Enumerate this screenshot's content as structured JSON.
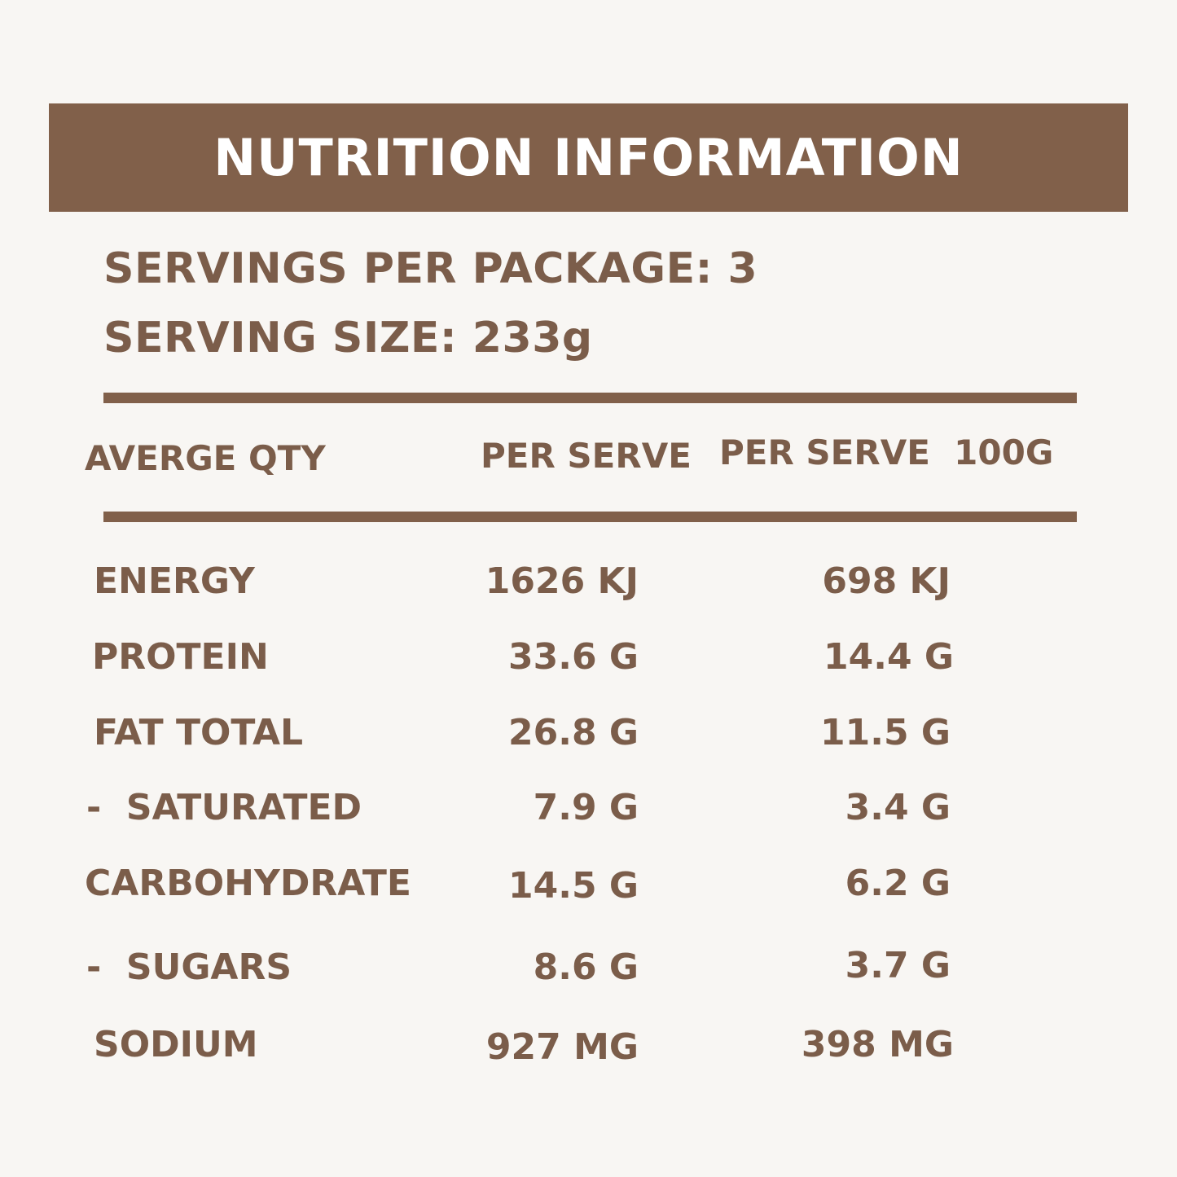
{
  "title": "NUTRITION INFORMATION",
  "servings_per_package": "SERVINGS PER PACKAGE: 3",
  "serving_size": "SERVING SIZE: 233g",
  "table": {
    "headers": [
      "AVERGE QTY",
      "PER SERVE",
      "PER SERVE  100G"
    ],
    "rows": [
      {
        "label": "ENERGY",
        "per_serve": "1626 KJ",
        "per_100g": "698 KJ"
      },
      {
        "label": "PROTEIN",
        "per_serve": "33.6 G",
        "per_100g": "14.4 G"
      },
      {
        "label": "FAT TOTAL",
        "per_serve": "26.8 G",
        "per_100g": "11.5 G"
      },
      {
        "label": "-  SATURATED",
        "per_serve": "7.9 G",
        "per_100g": "3.4 G"
      },
      {
        "label": "CARBOHYDRATE",
        "per_serve": "14.5 G",
        "per_100g": "6.2 G"
      },
      {
        "label": "-  SUGARS",
        "per_serve": "8.6 G",
        "per_100g": "3.7 G"
      },
      {
        "label": "SODIUM",
        "per_serve": "927 MG",
        "per_100g": "398 MG"
      }
    ]
  },
  "colors": {
    "brand_brown": "#81604a",
    "text_brown": "#7b5d4a",
    "background": "#f8f6f3",
    "title_text": "#ffffff"
  }
}
